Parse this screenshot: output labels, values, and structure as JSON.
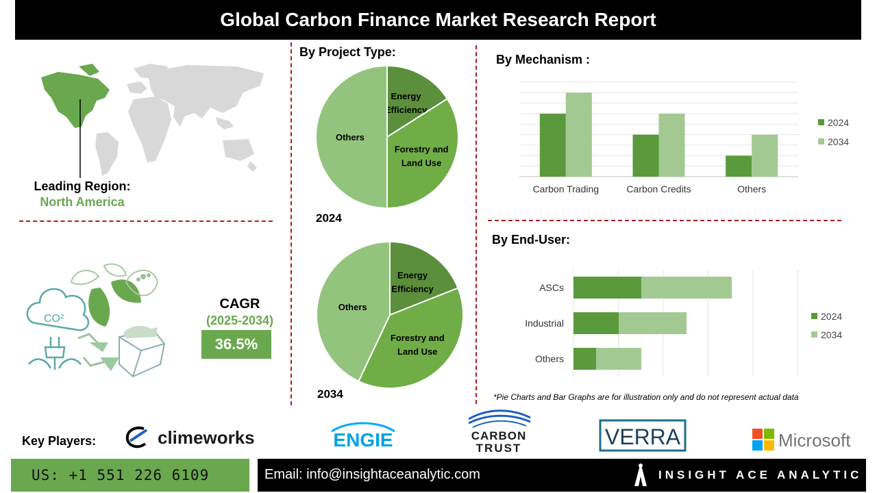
{
  "header": {
    "title": "Global Carbon Finance Market Research Report"
  },
  "region": {
    "label": "Leading Region:",
    "value": "North America"
  },
  "cagr": {
    "title": "CAGR",
    "range": "(2025-2034)",
    "value": "36.5%"
  },
  "sections": {
    "project_type": "By Project Type:",
    "mechanism": "By  Mechanism :",
    "end_user": "By End-User:"
  },
  "chart_data": [
    {
      "type": "pie",
      "title": "By Project Type:",
      "year": "2024",
      "labels": [
        "Energy Efficiency",
        "Forestry and Land Use",
        "Others"
      ],
      "values": [
        16,
        34,
        50
      ],
      "label_lines": [
        [
          "Energy",
          "Efficiency"
        ],
        [
          "Forestry and",
          "Land Use"
        ],
        [
          "Others"
        ]
      ],
      "colors": [
        "#5b8f3c",
        "#70ad47",
        "#93c47d"
      ]
    },
    {
      "type": "pie",
      "year": "2034",
      "labels": [
        "Energy Efficiency",
        "Forestry and Land Use",
        "Others"
      ],
      "values": [
        19,
        38,
        43
      ],
      "label_lines": [
        [
          "Energy",
          "Efficiency"
        ],
        [
          "Forestry and",
          "Land Use"
        ],
        [
          "Others"
        ]
      ],
      "colors": [
        "#5b8f3c",
        "#70ad47",
        "#93c47d"
      ]
    },
    {
      "type": "bar",
      "title": "By  Mechanism :",
      "categories": [
        "Carbon Trading",
        "Carbon Credits",
        "Others"
      ],
      "series": [
        {
          "name": "2024",
          "values": [
            6,
            4,
            2
          ],
          "color": "#5b9a3c"
        },
        {
          "name": "2034",
          "values": [
            8,
            6,
            4
          ],
          "color": "#a3c993"
        }
      ],
      "ylim": [
        0,
        9
      ],
      "grid": true,
      "legend": "right"
    },
    {
      "type": "bar",
      "orientation": "horizontal",
      "title": "By End-User:",
      "categories": [
        "ASCs",
        "Industrial",
        "Others"
      ],
      "series": [
        {
          "name": "2024",
          "values": [
            3,
            2,
            1
          ],
          "color": "#5b9a3c"
        },
        {
          "name": "2034",
          "values": [
            4,
            3,
            2
          ],
          "color": "#a3c993"
        }
      ],
      "stacked": true,
      "xlim": [
        0,
        8
      ],
      "grid": true,
      "legend": "right"
    }
  ],
  "note": "*Pie Charts and Bar Graphs are for illustration only and do not represent actual data",
  "key_players": {
    "label": "Key Players:",
    "logos": [
      "climeworks",
      "ENGIE",
      "CARBON",
      "TRUST",
      "VERRA",
      "Microsoft"
    ]
  },
  "footer": {
    "phone": "US: +1 551 226 6109",
    "email": "Email: info@insightaceanalytic.com",
    "brand": "INSIGHT ACE ANALYTIC"
  },
  "icons": [
    "world-map-icon",
    "eco-illustration-icon",
    "microsoft-logo-icon",
    "insightace-logo-icon"
  ]
}
